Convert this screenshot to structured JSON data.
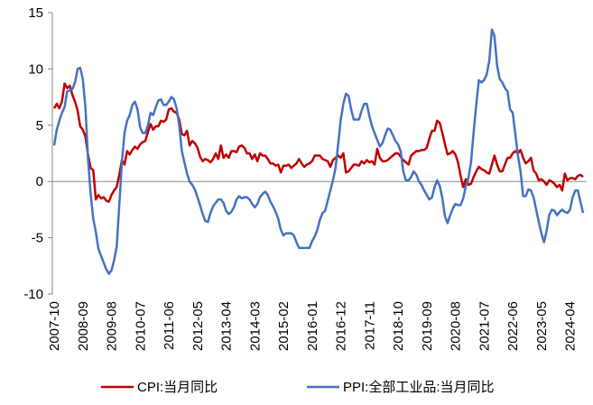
{
  "chart_data": {
    "type": "line",
    "categories": [
      "2007-10",
      null,
      null,
      null,
      null,
      null,
      null,
      null,
      null,
      null,
      null,
      "2008-09",
      null,
      null,
      null,
      null,
      null,
      null,
      null,
      null,
      null,
      null,
      "2009-08",
      null,
      null,
      null,
      null,
      null,
      null,
      null,
      null,
      null,
      null,
      "2010-07",
      null,
      null,
      null,
      null,
      null,
      null,
      null,
      null,
      null,
      null,
      "2011-06",
      null,
      null,
      null,
      null,
      null,
      null,
      null,
      null,
      null,
      null,
      "2012-05",
      null,
      null,
      null,
      null,
      null,
      null,
      null,
      null,
      null,
      null,
      "2013-04",
      null,
      null,
      null,
      null,
      null,
      null,
      null,
      null,
      null,
      null,
      "2014-03",
      null,
      null,
      null,
      null,
      null,
      null,
      null,
      null,
      null,
      null,
      "2015-02",
      null,
      null,
      null,
      null,
      null,
      null,
      null,
      null,
      null,
      null,
      "2016-01",
      null,
      null,
      null,
      null,
      null,
      null,
      null,
      null,
      null,
      null,
      "2016-12",
      null,
      null,
      null,
      null,
      null,
      null,
      null,
      null,
      null,
      null,
      "2017-11",
      null,
      null,
      null,
      null,
      null,
      null,
      null,
      null,
      null,
      null,
      "2018-10",
      null,
      null,
      null,
      null,
      null,
      null,
      null,
      null,
      null,
      null,
      "2019-09",
      null,
      null,
      null,
      null,
      null,
      null,
      null,
      null,
      null,
      null,
      "2020-08",
      null,
      null,
      null,
      null,
      null,
      null,
      null,
      null,
      null,
      null,
      "2021-07",
      null,
      null,
      null,
      null,
      null,
      null,
      null,
      null,
      null,
      null,
      "2022-06",
      null,
      null,
      null,
      null,
      null,
      null,
      null,
      null,
      null,
      null,
      "2023-05",
      null,
      null,
      null,
      null,
      null,
      null,
      null,
      null,
      null,
      null,
      "2024-04",
      null,
      null,
      null,
      null,
      null
    ],
    "series": [
      {
        "name": "CPI:当月同比",
        "color": "#c00000",
        "values": [
          6.5,
          6.9,
          6.5,
          7.1,
          8.7,
          8.3,
          8.5,
          7.7,
          7.1,
          6.3,
          4.9,
          4.6,
          4.0,
          2.4,
          1.2,
          1.0,
          -1.6,
          -1.2,
          -1.5,
          -1.4,
          -1.7,
          -1.8,
          -1.2,
          -0.8,
          -0.5,
          0.6,
          1.9,
          1.5,
          2.7,
          2.4,
          2.8,
          3.1,
          2.9,
          3.3,
          3.5,
          3.6,
          4.4,
          5.1,
          4.6,
          4.9,
          4.9,
          5.4,
          5.3,
          5.5,
          6.4,
          6.5,
          6.2,
          6.1,
          5.5,
          4.2,
          4.1,
          4.5,
          3.2,
          3.6,
          3.4,
          3.0,
          2.2,
          1.8,
          2.0,
          1.9,
          1.7,
          2.0,
          2.5,
          2.0,
          3.2,
          2.1,
          2.4,
          2.1,
          2.7,
          2.7,
          2.6,
          3.1,
          3.2,
          3.0,
          2.5,
          2.5,
          2.0,
          2.4,
          1.8,
          2.5,
          2.3,
          2.3,
          2.0,
          1.6,
          1.6,
          1.4,
          1.5,
          0.8,
          1.4,
          1.4,
          1.5,
          1.2,
          1.4,
          1.6,
          2.0,
          1.6,
          1.3,
          1.5,
          1.6,
          1.8,
          2.3,
          2.3,
          2.3,
          2.0,
          1.9,
          1.8,
          1.3,
          1.9,
          2.1,
          2.3,
          2.1,
          2.5,
          0.8,
          0.9,
          1.2,
          1.5,
          1.5,
          1.4,
          1.8,
          1.6,
          1.9,
          1.7,
          1.8,
          1.5,
          2.9,
          2.1,
          1.8,
          1.8,
          1.9,
          2.1,
          2.3,
          2.5,
          2.5,
          2.2,
          1.9,
          1.7,
          1.5,
          2.3,
          2.5,
          2.7,
          2.7,
          2.8,
          2.8,
          3.0,
          3.8,
          4.5,
          4.5,
          5.4,
          5.2,
          4.3,
          3.3,
          2.4,
          2.5,
          2.7,
          2.4,
          1.7,
          0.5,
          -0.5,
          0.2,
          -0.3,
          -0.2,
          0.4,
          0.9,
          1.3,
          1.1,
          1.0,
          0.8,
          0.7,
          1.5,
          2.3,
          1.5,
          0.9,
          0.9,
          1.5,
          2.1,
          2.1,
          2.5,
          2.7,
          2.5,
          2.8,
          2.1,
          1.6,
          1.8,
          2.1,
          1.0,
          0.7,
          0.1,
          0.2,
          0.0,
          -0.3,
          0.1,
          0.0,
          -0.2,
          -0.5,
          -0.3,
          -0.8,
          0.7,
          0.1,
          0.3,
          0.3,
          0.2,
          0.5,
          0.6,
          0.4
        ]
      },
      {
        "name": "PPI:全部工业品:当月同比",
        "color": "#4472c4",
        "values": [
          3.2,
          4.6,
          5.4,
          6.1,
          6.6,
          8.0,
          8.1,
          8.2,
          8.8,
          10.0,
          10.1,
          9.1,
          6.6,
          2.0,
          -1.1,
          -3.3,
          -4.5,
          -6.0,
          -6.6,
          -7.2,
          -7.8,
          -8.2,
          -7.9,
          -7.0,
          -5.8,
          -2.1,
          1.7,
          4.3,
          5.4,
          5.9,
          6.8,
          7.1,
          6.4,
          4.8,
          4.3,
          4.3,
          5.0,
          6.1,
          5.9,
          6.6,
          7.2,
          7.3,
          6.8,
          6.8,
          7.1,
          7.5,
          7.3,
          6.5,
          5.0,
          2.7,
          1.7,
          0.7,
          0.0,
          -0.3,
          -0.7,
          -1.4,
          -2.1,
          -2.9,
          -3.5,
          -3.6,
          -2.8,
          -2.2,
          -1.9,
          -1.6,
          -1.6,
          -1.9,
          -2.6,
          -2.9,
          -2.7,
          -2.3,
          -1.6,
          -1.3,
          -1.5,
          -1.4,
          -1.4,
          -1.6,
          -2.0,
          -2.3,
          -2.0,
          -1.4,
          -1.1,
          -0.9,
          -1.2,
          -1.8,
          -2.2,
          -2.7,
          -3.3,
          -4.3,
          -4.8,
          -4.6,
          -4.6,
          -4.6,
          -4.8,
          -5.4,
          -5.9,
          -5.9,
          -5.9,
          -5.9,
          -5.9,
          -5.3,
          -4.9,
          -4.3,
          -3.4,
          -2.8,
          -2.6,
          -1.7,
          -0.8,
          0.1,
          1.2,
          3.3,
          5.5,
          6.9,
          7.8,
          7.6,
          6.4,
          5.5,
          5.5,
          5.5,
          6.3,
          6.9,
          6.9,
          5.8,
          4.9,
          4.3,
          3.7,
          3.1,
          3.4,
          4.1,
          4.7,
          4.6,
          4.1,
          3.6,
          3.3,
          2.7,
          0.9,
          0.1,
          0.1,
          0.4,
          0.9,
          0.6,
          0.0,
          -0.3,
          -0.8,
          -1.2,
          -1.6,
          -1.4,
          -0.5,
          0.1,
          -0.4,
          -1.5,
          -3.1,
          -3.7,
          -3.0,
          -2.4,
          -2.0,
          -2.1,
          -2.1,
          -1.5,
          -0.4,
          0.3,
          1.7,
          4.4,
          6.8,
          9.0,
          8.8,
          9.0,
          9.5,
          10.7,
          13.5,
          12.9,
          10.3,
          9.1,
          8.8,
          8.3,
          8.0,
          6.4,
          6.1,
          4.2,
          2.3,
          0.9,
          -1.3,
          -1.3,
          -0.7,
          -0.8,
          -1.4,
          -2.5,
          -3.6,
          -4.6,
          -5.4,
          -4.4,
          -3.0,
          -2.5,
          -2.6,
          -3.0,
          -2.7,
          -2.5,
          -2.7,
          -2.8,
          -2.5,
          -1.4,
          -0.8,
          -0.8,
          -1.8,
          -2.8
        ]
      }
    ],
    "ylim": [
      -10,
      15
    ],
    "yticks": [
      -10,
      -5,
      0,
      5,
      10,
      15
    ],
    "grid": false,
    "legend": "bottom"
  }
}
